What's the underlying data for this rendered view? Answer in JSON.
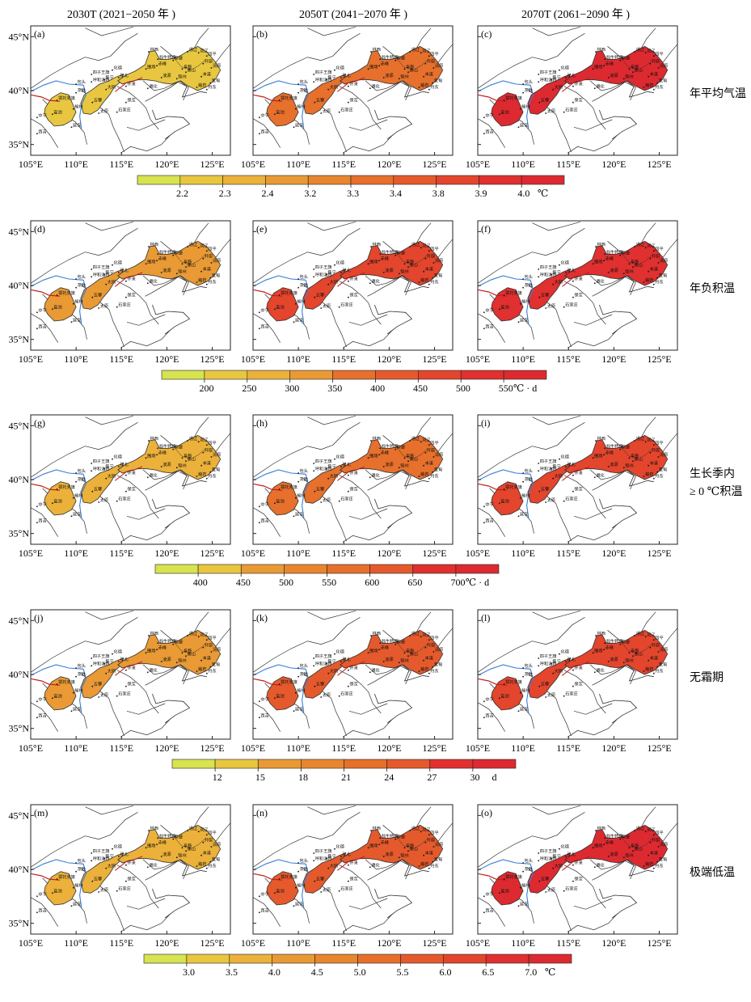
{
  "column_headers": [
    "2030T (2021−2050 年 )",
    "2050T (2041−2070 年 )",
    "2070T (2061−2090 年 )"
  ],
  "axes": {
    "lon_ticks": [
      "105°E",
      "110°E",
      "115°E",
      "120°E",
      "125°E"
    ],
    "lat_ticks": [
      "45°N",
      "40°N",
      "35°N"
    ],
    "lon_range": [
      105,
      127
    ],
    "lat_range": [
      34,
      46
    ]
  },
  "rows": [
    {
      "row_label": "年平均气温",
      "panel_labels": [
        "(a)",
        "(b)",
        "(c)"
      ],
      "colorbar": {
        "ticks": [
          "2.2",
          "2.3",
          "2.4",
          "3.2",
          "3.3",
          "3.4",
          "3.8",
          "3.9",
          "4.0"
        ],
        "unit": "℃"
      },
      "period_level": [
        1,
        5,
        9
      ]
    },
    {
      "row_label": "年负积温",
      "panel_labels": [
        "(d)",
        "(e)",
        "(f)"
      ],
      "colorbar": {
        "ticks": [
          "200",
          "250",
          "300",
          "350",
          "400",
          "450",
          "500",
          "550"
        ],
        "unit": "℃ · d"
      },
      "period_level": [
        3,
        7,
        8
      ]
    },
    {
      "row_label": "生长季内\n≥ 0 ℃积温",
      "panel_labels": [
        "(g)",
        "(h)",
        "(i)"
      ],
      "colorbar": {
        "ticks": [
          "400",
          "450",
          "500",
          "550",
          "600",
          "650",
          "700"
        ],
        "unit": "℃ · d"
      },
      "period_level": [
        2,
        5,
        7
      ]
    },
    {
      "row_label": "无霜期",
      "panel_labels": [
        "(j)",
        "(k)",
        "(l)"
      ],
      "colorbar": {
        "ticks": [
          "12",
          "15",
          "18",
          "21",
          "24",
          "27",
          "30"
        ],
        "unit": "d"
      },
      "period_level": [
        3,
        6,
        7
      ]
    },
    {
      "row_label": "极端低温",
      "panel_labels": [
        "(m)",
        "(n)",
        "(o)"
      ],
      "colorbar": {
        "ticks": [
          "3.0",
          "3.5",
          "4.0",
          "4.5",
          "5.0",
          "5.5",
          "6.0",
          "6.5",
          "7.0"
        ],
        "unit": "℃"
      },
      "period_level": [
        2,
        6,
        9
      ]
    }
  ],
  "place_labels": [
    {
      "name": "林西",
      "lon": 118.0,
      "lat": 43.6
    },
    {
      "name": "双辽",
      "lon": 123.5,
      "lat": 43.5
    },
    {
      "name": "四平",
      "lon": 124.4,
      "lat": 43.2
    },
    {
      "name": "奈曼",
      "lon": 120.7,
      "lat": 42.8
    },
    {
      "name": "通辽",
      "lon": 122.3,
      "lat": 43.6
    },
    {
      "name": "开原",
      "lon": 124.0,
      "lat": 42.5
    },
    {
      "name": "翁牛特旗",
      "lon": 119.0,
      "lat": 42.9
    },
    {
      "name": "清原",
      "lon": 124.9,
      "lat": 42.1
    },
    {
      "name": "阜新",
      "lon": 121.7,
      "lat": 42.0
    },
    {
      "name": "黑山",
      "lon": 122.1,
      "lat": 41.7
    },
    {
      "name": "本溪",
      "lon": 123.8,
      "lat": 41.3
    },
    {
      "name": "宽甸",
      "lon": 124.8,
      "lat": 40.7
    },
    {
      "name": "凌源",
      "lon": 119.4,
      "lat": 41.2
    },
    {
      "name": "赤峰",
      "lon": 118.9,
      "lat": 42.3
    },
    {
      "name": "锦州",
      "lon": 121.1,
      "lat": 41.1
    },
    {
      "name": "岫岩",
      "lon": 123.3,
      "lat": 40.3
    },
    {
      "name": "丹东",
      "lon": 124.4,
      "lat": 40.1
    },
    {
      "name": "化德",
      "lon": 114.0,
      "lat": 41.9
    },
    {
      "name": "张北",
      "lon": 114.7,
      "lat": 41.2
    },
    {
      "name": "围场",
      "lon": 117.7,
      "lat": 42.0
    },
    {
      "name": "怀来",
      "lon": 115.5,
      "lat": 40.4
    },
    {
      "name": "遵化",
      "lon": 117.9,
      "lat": 40.2
    },
    {
      "name": "四子王旗",
      "lon": 111.7,
      "lat": 41.5
    },
    {
      "name": "呼和浩特",
      "lon": 111.7,
      "lat": 40.8
    },
    {
      "name": "集宁",
      "lon": 113.1,
      "lat": 41.0
    },
    {
      "name": "包头",
      "lon": 110.0,
      "lat": 40.6
    },
    {
      "name": "东胜",
      "lon": 110.0,
      "lat": 39.8
    },
    {
      "name": "鄂托克旗",
      "lon": 107.9,
      "lat": 39.1
    },
    {
      "name": "大同",
      "lon": 113.3,
      "lat": 40.1
    },
    {
      "name": "五寨",
      "lon": 111.8,
      "lat": 38.9
    },
    {
      "name": "保定",
      "lon": 115.5,
      "lat": 38.9
    },
    {
      "name": "太原",
      "lon": 112.5,
      "lat": 37.9
    },
    {
      "name": "石家庄",
      "lon": 114.5,
      "lat": 38.0
    },
    {
      "name": "榆林",
      "lon": 109.7,
      "lat": 38.3
    },
    {
      "name": "盐池",
      "lon": 107.4,
      "lat": 37.8
    },
    {
      "name": "中宁",
      "lon": 105.7,
      "lat": 37.5
    },
    {
      "name": "西吉",
      "lon": 105.7,
      "lat": 36.0
    },
    {
      "name": "延安",
      "lon": 109.5,
      "lat": 36.6
    }
  ],
  "colors": {
    "scale": [
      "#d7e34f",
      "#e8c640",
      "#ebb13a",
      "#e99a35",
      "#e8862f",
      "#e6702c",
      "#e55a2c",
      "#e3452d",
      "#e0302f",
      "#dd2a30"
    ],
    "boundary": "#303030",
    "river": "#3a7fd6",
    "province_line": "#c21f1f"
  }
}
